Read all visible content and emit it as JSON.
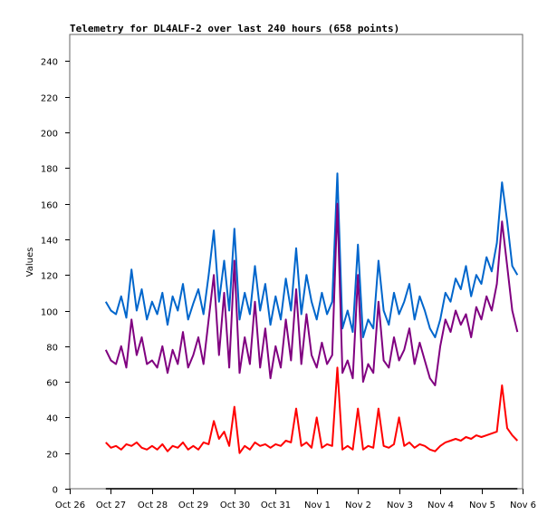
{
  "chart_data": {
    "type": "line",
    "title": "Telemetry for DL4ALF-2 over last 240 hours (658 points)",
    "xlabel": "",
    "ylabel": "Values",
    "ylim": [
      0,
      255
    ],
    "xlim_hours": [
      0,
      264
    ],
    "x_unit": "hours since Oct 26 00:00",
    "grid": false,
    "yticks": [
      0,
      20,
      40,
      60,
      80,
      100,
      120,
      140,
      160,
      180,
      200,
      220,
      240
    ],
    "xticks": [
      {
        "hour": 0,
        "label": "Oct 26"
      },
      {
        "hour": 24,
        "label": "Oct 27"
      },
      {
        "hour": 48,
        "label": "Oct 28"
      },
      {
        "hour": 72,
        "label": "Oct 29"
      },
      {
        "hour": 96,
        "label": "Oct 30"
      },
      {
        "hour": 120,
        "label": "Oct 31"
      },
      {
        "hour": 144,
        "label": "Nov 1"
      },
      {
        "hour": 168,
        "label": "Nov 2"
      },
      {
        "hour": 192,
        "label": "Nov 3"
      },
      {
        "hour": 216,
        "label": "Nov 4"
      },
      {
        "hour": 240,
        "label": "Nov 5"
      },
      {
        "hour": 264,
        "label": "Nov 6"
      }
    ],
    "x_start_hour": 21,
    "x_step_hours": 3,
    "series": [
      {
        "name": "blue",
        "color": "#0066cc",
        "values": [
          105,
          100,
          98,
          108,
          96,
          123,
          100,
          112,
          95,
          105,
          98,
          110,
          92,
          108,
          100,
          115,
          95,
          104,
          112,
          98,
          120,
          145,
          105,
          128,
          100,
          146,
          95,
          110,
          98,
          125,
          100,
          115,
          92,
          108,
          95,
          118,
          100,
          135,
          98,
          120,
          105,
          95,
          110,
          98,
          105,
          177,
          90,
          100,
          88,
          137,
          85,
          95,
          90,
          128,
          100,
          92,
          110,
          98,
          105,
          115,
          95,
          108,
          100,
          90,
          85,
          95,
          110,
          105,
          118,
          112,
          125,
          108,
          120,
          115,
          130,
          122,
          138,
          172,
          150,
          125,
          120
        ]
      },
      {
        "name": "purple",
        "color": "#800080",
        "values": [
          78,
          72,
          70,
          80,
          68,
          95,
          75,
          85,
          70,
          72,
          68,
          80,
          65,
          78,
          70,
          88,
          68,
          75,
          85,
          70,
          95,
          120,
          75,
          110,
          68,
          128,
          65,
          85,
          70,
          105,
          68,
          90,
          62,
          80,
          68,
          95,
          72,
          112,
          70,
          98,
          75,
          68,
          82,
          70,
          75,
          160,
          65,
          72,
          62,
          120,
          60,
          70,
          65,
          105,
          72,
          68,
          85,
          72,
          78,
          90,
          70,
          82,
          72,
          62,
          58,
          80,
          95,
          88,
          100,
          92,
          98,
          85,
          102,
          95,
          108,
          100,
          115,
          150,
          125,
          100,
          88
        ]
      },
      {
        "name": "red",
        "color": "#ff0000",
        "values": [
          26,
          23,
          24,
          22,
          25,
          24,
          26,
          23,
          22,
          24,
          22,
          25,
          21,
          24,
          23,
          26,
          22,
          24,
          22,
          26,
          25,
          38,
          28,
          32,
          24,
          46,
          20,
          24,
          22,
          26,
          24,
          25,
          23,
          25,
          24,
          27,
          26,
          45,
          24,
          26,
          23,
          40,
          23,
          25,
          24,
          68,
          22,
          24,
          22,
          45,
          22,
          24,
          23,
          45,
          24,
          23,
          25,
          40,
          24,
          26,
          23,
          25,
          24,
          22,
          21,
          24,
          26,
          27,
          28,
          27,
          29,
          28,
          30,
          29,
          30,
          31,
          32,
          58,
          34,
          30,
          27
        ]
      },
      {
        "name": "black",
        "color": "#000000",
        "values": [
          0,
          0,
          0,
          0,
          0,
          0,
          0,
          0,
          0,
          0,
          0,
          0,
          0,
          0,
          0,
          0,
          0,
          0,
          0,
          0,
          0,
          0,
          0,
          0,
          0,
          0,
          0,
          0,
          0,
          0,
          0,
          0,
          0,
          0,
          0,
          0,
          0,
          0,
          0,
          0,
          0,
          0,
          0,
          0,
          0,
          0,
          0,
          0,
          0,
          0,
          0,
          0,
          0,
          0,
          0,
          0,
          0,
          0,
          0,
          0,
          0,
          0,
          0,
          0,
          0,
          0,
          0,
          0,
          0,
          0,
          0,
          0,
          0,
          0,
          0,
          0,
          0,
          0,
          0,
          0,
          0
        ]
      }
    ]
  }
}
